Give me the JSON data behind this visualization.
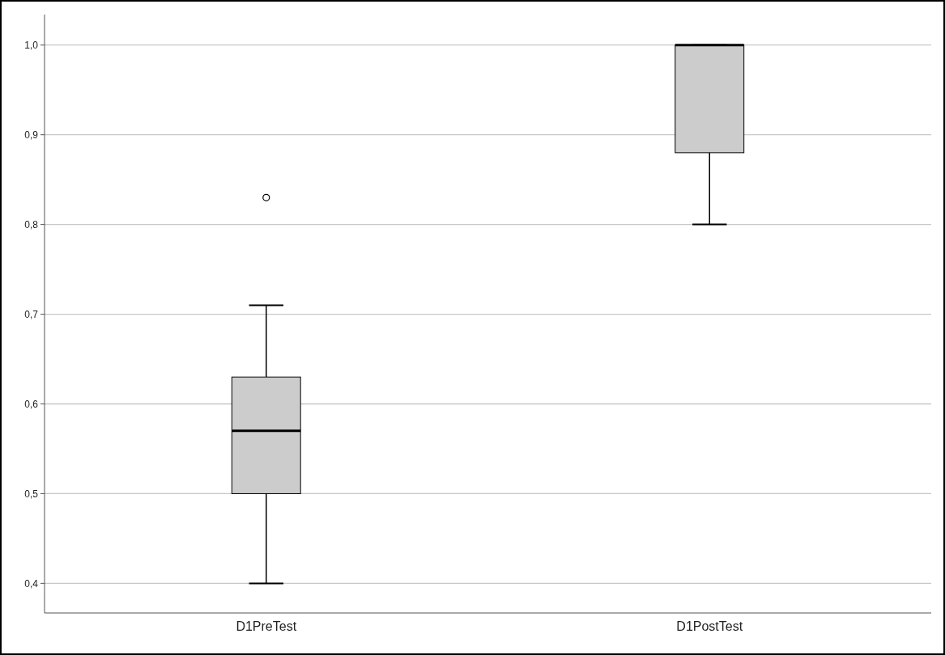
{
  "chart_data": {
    "type": "box",
    "categories": [
      "D1PreTest",
      "D1PostTest"
    ],
    "series": [
      {
        "color": "#cccccc",
        "boxes": [
          {
            "low": 0.4,
            "q1": 0.5,
            "median": 0.57,
            "q3": 0.63,
            "high": 0.71,
            "outliers": [
              0.83
            ]
          },
          {
            "low": 0.8,
            "q1": 0.88,
            "median": 1.0,
            "q3": 1.0,
            "high": 1.0
          }
        ]
      }
    ],
    "ylim": [
      0.367,
      1.034
    ],
    "yticks": [
      {
        "value": 0.4,
        "label": "0,4"
      },
      {
        "value": 0.5,
        "label": "0,5"
      },
      {
        "value": 0.6,
        "label": "0,6"
      },
      {
        "value": 0.7,
        "label": "0,7"
      },
      {
        "value": 0.8,
        "label": "0,8"
      },
      {
        "value": 0.9,
        "label": "0,9"
      },
      {
        "value": 1.0,
        "label": "1,0"
      }
    ],
    "grid": "y"
  }
}
